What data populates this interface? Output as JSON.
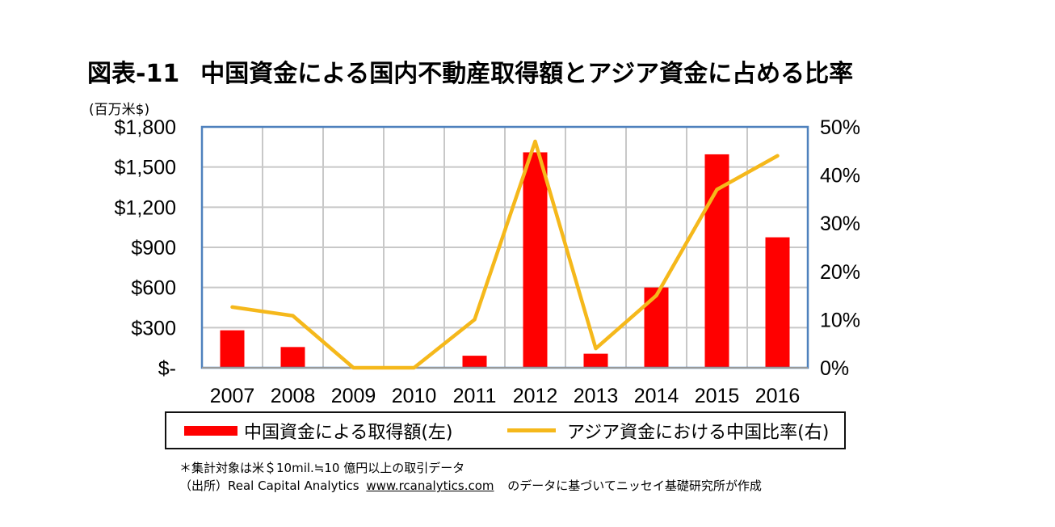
{
  "title": {
    "number": "図表-11",
    "text": "中国資金による国内不動産取得額とアジア資金に占める比率"
  },
  "unit_label": "(百万米$)",
  "chart_data": {
    "type": "bar+line",
    "categories": [
      "2007",
      "2008",
      "2009",
      "2010",
      "2011",
      "2012",
      "2013",
      "2014",
      "2015",
      "2016"
    ],
    "series": [
      {
        "name": "中国資金による取得額(左)",
        "type": "bar",
        "axis": "left",
        "color": "#ff0000",
        "values": [
          280,
          155,
          0,
          0,
          90,
          1610,
          105,
          600,
          1595,
          975
        ]
      },
      {
        "name": "アジア資金における中国比率(右)",
        "type": "line",
        "axis": "right",
        "color": "#f5b81b",
        "values": [
          12.6,
          10.8,
          0,
          0,
          10.0,
          47.0,
          4.0,
          15.0,
          37.0,
          44.0
        ]
      }
    ],
    "left_axis": {
      "min": 0,
      "max": 1800,
      "ticks": [
        0,
        300,
        600,
        900,
        1200,
        1500,
        1800
      ],
      "tick_labels": [
        "$-",
        "$300",
        "$600",
        "$900",
        "$1,200",
        "$1,500",
        "$1,800"
      ]
    },
    "right_axis": {
      "min": 0,
      "max": 50,
      "ticks": [
        0,
        10,
        20,
        30,
        40,
        50
      ],
      "tick_labels": [
        "0%",
        "10%",
        "20%",
        "30%",
        "40%",
        "50%"
      ]
    },
    "grid": true,
    "legend_position": "bottom"
  },
  "legend": {
    "bar_label": "中国資金による取得額(左)",
    "line_label": "アジア資金における中国比率(右)"
  },
  "notes": {
    "note": "＊集計対象は米＄10mil.≒10 億円以上の取引データ",
    "source_prefix": "（出所）Real Capital Analytics",
    "source_url": "www.rcanalytics.com",
    "source_suffix": "のデータに基づいてニッセイ基礎研究所が作成"
  }
}
